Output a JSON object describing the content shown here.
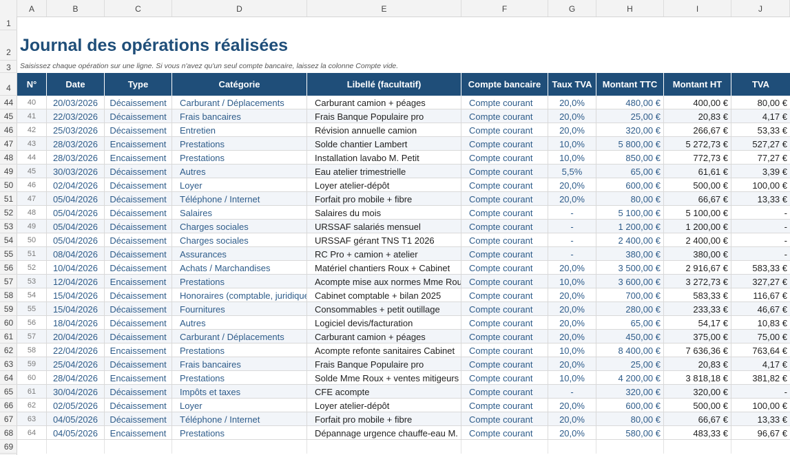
{
  "columns": [
    "A",
    "B",
    "C",
    "D",
    "E",
    "F",
    "G",
    "H",
    "I",
    "J"
  ],
  "sheet": {
    "title": "Journal des opérations réalisées",
    "subtitle": "Saisissez chaque opération sur une ligne. Si vous n'avez qu'un seul compte bancaire, laissez la colonne Compte vide."
  },
  "row_numbers": {
    "r1": "1",
    "r2": "2",
    "r3": "3",
    "r4": "4",
    "r69": "69"
  },
  "table": {
    "headers": [
      "N°",
      "Date",
      "Type",
      "Catégorie",
      "Libellé (facultatif)",
      "Compte bancaire",
      "Taux TVA",
      "Montant TTC",
      "Montant HT",
      "TVA"
    ],
    "rows": [
      {
        "row": "44",
        "n": "40",
        "date": "20/03/2026",
        "type": "Décaissement",
        "cat": "Carburant / Déplacements",
        "lib": "Carburant camion + péages",
        "compte": "Compte courant",
        "taux": "20,0%",
        "ttc": "480,00 €",
        "ht": "400,00 €",
        "tva": "80,00 €"
      },
      {
        "row": "45",
        "n": "41",
        "date": "22/03/2026",
        "type": "Décaissement",
        "cat": "Frais bancaires",
        "lib": "Frais Banque Populaire pro",
        "compte": "Compte courant",
        "taux": "20,0%",
        "ttc": "25,00 €",
        "ht": "20,83 €",
        "tva": "4,17 €"
      },
      {
        "row": "46",
        "n": "42",
        "date": "25/03/2026",
        "type": "Décaissement",
        "cat": "Entretien",
        "lib": "Révision annuelle camion",
        "compte": "Compte courant",
        "taux": "20,0%",
        "ttc": "320,00 €",
        "ht": "266,67 €",
        "tva": "53,33 €"
      },
      {
        "row": "47",
        "n": "43",
        "date": "28/03/2026",
        "type": "Encaissement",
        "cat": "Prestations",
        "lib": "Solde chantier Lambert",
        "compte": "Compte courant",
        "taux": "10,0%",
        "ttc": "5 800,00 €",
        "ht": "5 272,73 €",
        "tva": "527,27 €"
      },
      {
        "row": "48",
        "n": "44",
        "date": "28/03/2026",
        "type": "Encaissement",
        "cat": "Prestations",
        "lib": "Installation lavabo M. Petit",
        "compte": "Compte courant",
        "taux": "10,0%",
        "ttc": "850,00 €",
        "ht": "772,73 €",
        "tva": "77,27 €"
      },
      {
        "row": "49",
        "n": "45",
        "date": "30/03/2026",
        "type": "Décaissement",
        "cat": "Autres",
        "lib": "Eau atelier trimestrielle",
        "compte": "Compte courant",
        "taux": "5,5%",
        "ttc": "65,00 €",
        "ht": "61,61 €",
        "tva": "3,39 €"
      },
      {
        "row": "50",
        "n": "46",
        "date": "02/04/2026",
        "type": "Décaissement",
        "cat": "Loyer",
        "lib": "Loyer atelier-dépôt",
        "compte": "Compte courant",
        "taux": "20,0%",
        "ttc": "600,00 €",
        "ht": "500,00 €",
        "tva": "100,00 €"
      },
      {
        "row": "51",
        "n": "47",
        "date": "05/04/2026",
        "type": "Décaissement",
        "cat": "Téléphone / Internet",
        "lib": "Forfait pro mobile + fibre",
        "compte": "Compte courant",
        "taux": "20,0%",
        "ttc": "80,00 €",
        "ht": "66,67 €",
        "tva": "13,33 €"
      },
      {
        "row": "52",
        "n": "48",
        "date": "05/04/2026",
        "type": "Décaissement",
        "cat": "Salaires",
        "lib": "Salaires du mois",
        "compte": "Compte courant",
        "taux": "-",
        "ttc": "5 100,00 €",
        "ht": "5 100,00 €",
        "tva": "-"
      },
      {
        "row": "53",
        "n": "49",
        "date": "05/04/2026",
        "type": "Décaissement",
        "cat": "Charges sociales",
        "lib": "URSSAF salariés mensuel",
        "compte": "Compte courant",
        "taux": "-",
        "ttc": "1 200,00 €",
        "ht": "1 200,00 €",
        "tva": "-"
      },
      {
        "row": "54",
        "n": "50",
        "date": "05/04/2026",
        "type": "Décaissement",
        "cat": "Charges sociales",
        "lib": "URSSAF gérant TNS T1 2026",
        "compte": "Compte courant",
        "taux": "-",
        "ttc": "2 400,00 €",
        "ht": "2 400,00 €",
        "tva": "-"
      },
      {
        "row": "55",
        "n": "51",
        "date": "08/04/2026",
        "type": "Décaissement",
        "cat": "Assurances",
        "lib": "RC Pro + camion + atelier",
        "compte": "Compte courant",
        "taux": "-",
        "ttc": "380,00 €",
        "ht": "380,00 €",
        "tva": "-"
      },
      {
        "row": "56",
        "n": "52",
        "date": "10/04/2026",
        "type": "Décaissement",
        "cat": "Achats / Marchandises",
        "lib": "Matériel chantiers Roux + Cabinet",
        "compte": "Compte courant",
        "taux": "20,0%",
        "ttc": "3 500,00 €",
        "ht": "2 916,67 €",
        "tva": "583,33 €"
      },
      {
        "row": "57",
        "n": "53",
        "date": "12/04/2026",
        "type": "Encaissement",
        "cat": "Prestations",
        "lib": "Acompte mise aux normes Mme Roux",
        "compte": "Compte courant",
        "taux": "10,0%",
        "ttc": "3 600,00 €",
        "ht": "3 272,73 €",
        "tva": "327,27 €"
      },
      {
        "row": "58",
        "n": "54",
        "date": "15/04/2026",
        "type": "Décaissement",
        "cat": "Honoraires (comptable, juridique)",
        "lib": "Cabinet comptable + bilan 2025",
        "compte": "Compte courant",
        "taux": "20,0%",
        "ttc": "700,00 €",
        "ht": "583,33 €",
        "tva": "116,67 €"
      },
      {
        "row": "59",
        "n": "55",
        "date": "15/04/2026",
        "type": "Décaissement",
        "cat": "Fournitures",
        "lib": "Consommables + petit outillage",
        "compte": "Compte courant",
        "taux": "20,0%",
        "ttc": "280,00 €",
        "ht": "233,33 €",
        "tva": "46,67 €"
      },
      {
        "row": "60",
        "n": "56",
        "date": "18/04/2026",
        "type": "Décaissement",
        "cat": "Autres",
        "lib": "Logiciel devis/facturation",
        "compte": "Compte courant",
        "taux": "20,0%",
        "ttc": "65,00 €",
        "ht": "54,17 €",
        "tva": "10,83 €"
      },
      {
        "row": "61",
        "n": "57",
        "date": "20/04/2026",
        "type": "Décaissement",
        "cat": "Carburant / Déplacements",
        "lib": "Carburant camion + péages",
        "compte": "Compte courant",
        "taux": "20,0%",
        "ttc": "450,00 €",
        "ht": "375,00 €",
        "tva": "75,00 €"
      },
      {
        "row": "62",
        "n": "58",
        "date": "22/04/2026",
        "type": "Encaissement",
        "cat": "Prestations",
        "lib": "Acompte refonte sanitaires Cabinet",
        "compte": "Compte courant",
        "taux": "10,0%",
        "ttc": "8 400,00 €",
        "ht": "7 636,36 €",
        "tva": "763,64 €"
      },
      {
        "row": "63",
        "n": "59",
        "date": "25/04/2026",
        "type": "Décaissement",
        "cat": "Frais bancaires",
        "lib": "Frais Banque Populaire pro",
        "compte": "Compte courant",
        "taux": "20,0%",
        "ttc": "25,00 €",
        "ht": "20,83 €",
        "tva": "4,17 €"
      },
      {
        "row": "64",
        "n": "60",
        "date": "28/04/2026",
        "type": "Encaissement",
        "cat": "Prestations",
        "lib": "Solde Mme Roux + ventes mitigeurs",
        "compte": "Compte courant",
        "taux": "10,0%",
        "ttc": "4 200,00 €",
        "ht": "3 818,18 €",
        "tva": "381,82 €"
      },
      {
        "row": "65",
        "n": "61",
        "date": "30/04/2026",
        "type": "Décaissement",
        "cat": "Impôts et taxes",
        "lib": "CFE acompte",
        "compte": "Compte courant",
        "taux": "-",
        "ttc": "320,00 €",
        "ht": "320,00 €",
        "tva": "-"
      },
      {
        "row": "66",
        "n": "62",
        "date": "02/05/2026",
        "type": "Décaissement",
        "cat": "Loyer",
        "lib": "Loyer atelier-dépôt",
        "compte": "Compte courant",
        "taux": "20,0%",
        "ttc": "600,00 €",
        "ht": "500,00 €",
        "tva": "100,00 €"
      },
      {
        "row": "67",
        "n": "63",
        "date": "04/05/2026",
        "type": "Décaissement",
        "cat": "Téléphone / Internet",
        "lib": "Forfait pro mobile + fibre",
        "compte": "Compte courant",
        "taux": "20,0%",
        "ttc": "80,00 €",
        "ht": "66,67 €",
        "tva": "13,33 €"
      },
      {
        "row": "68",
        "n": "64",
        "date": "04/05/2026",
        "type": "Encaissement",
        "cat": "Prestations",
        "lib": "Dépannage urgence chauffe-eau M. Martin",
        "compte": "Compte courant",
        "taux": "20,0%",
        "ttc": "580,00 €",
        "ht": "483,33 €",
        "tva": "96,67 €"
      }
    ]
  },
  "colors": {
    "header_bg": "#1f4e79",
    "title": "#1f4e79",
    "text_blue": "#2e5c8a",
    "alt_row": "#f2f5f9"
  }
}
